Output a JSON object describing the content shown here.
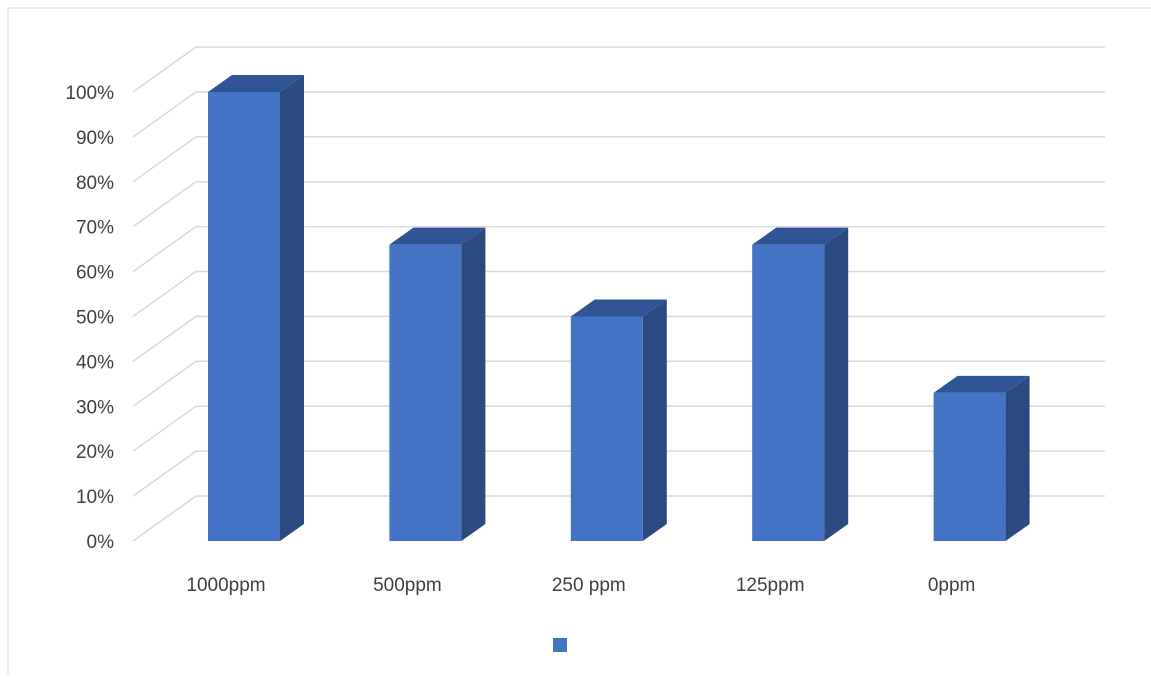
{
  "chart_data": {
    "type": "bar",
    "categories": [
      "1000ppm",
      "500ppm",
      "250 ppm",
      "125ppm",
      "0ppm"
    ],
    "series": [
      {
        "values": [
          100,
          66,
          50,
          66,
          33
        ]
      }
    ],
    "y_ticks": [
      "0%",
      "10%",
      "20%",
      "30%",
      "40%",
      "50%",
      "60%",
      "70%",
      "80%",
      "90%",
      "100%"
    ],
    "ylim": [
      0,
      100
    ],
    "y_unit": "percent",
    "grid": true,
    "style": "3d-column",
    "legend_position": "bottom"
  },
  "colors": {
    "bar_front": "#4472C4",
    "bar_top": "#2F5597",
    "bar_side": "#2A4A80",
    "gridline": "#D9D9D9",
    "text": "#404040",
    "frame": "#D9D9D9"
  }
}
